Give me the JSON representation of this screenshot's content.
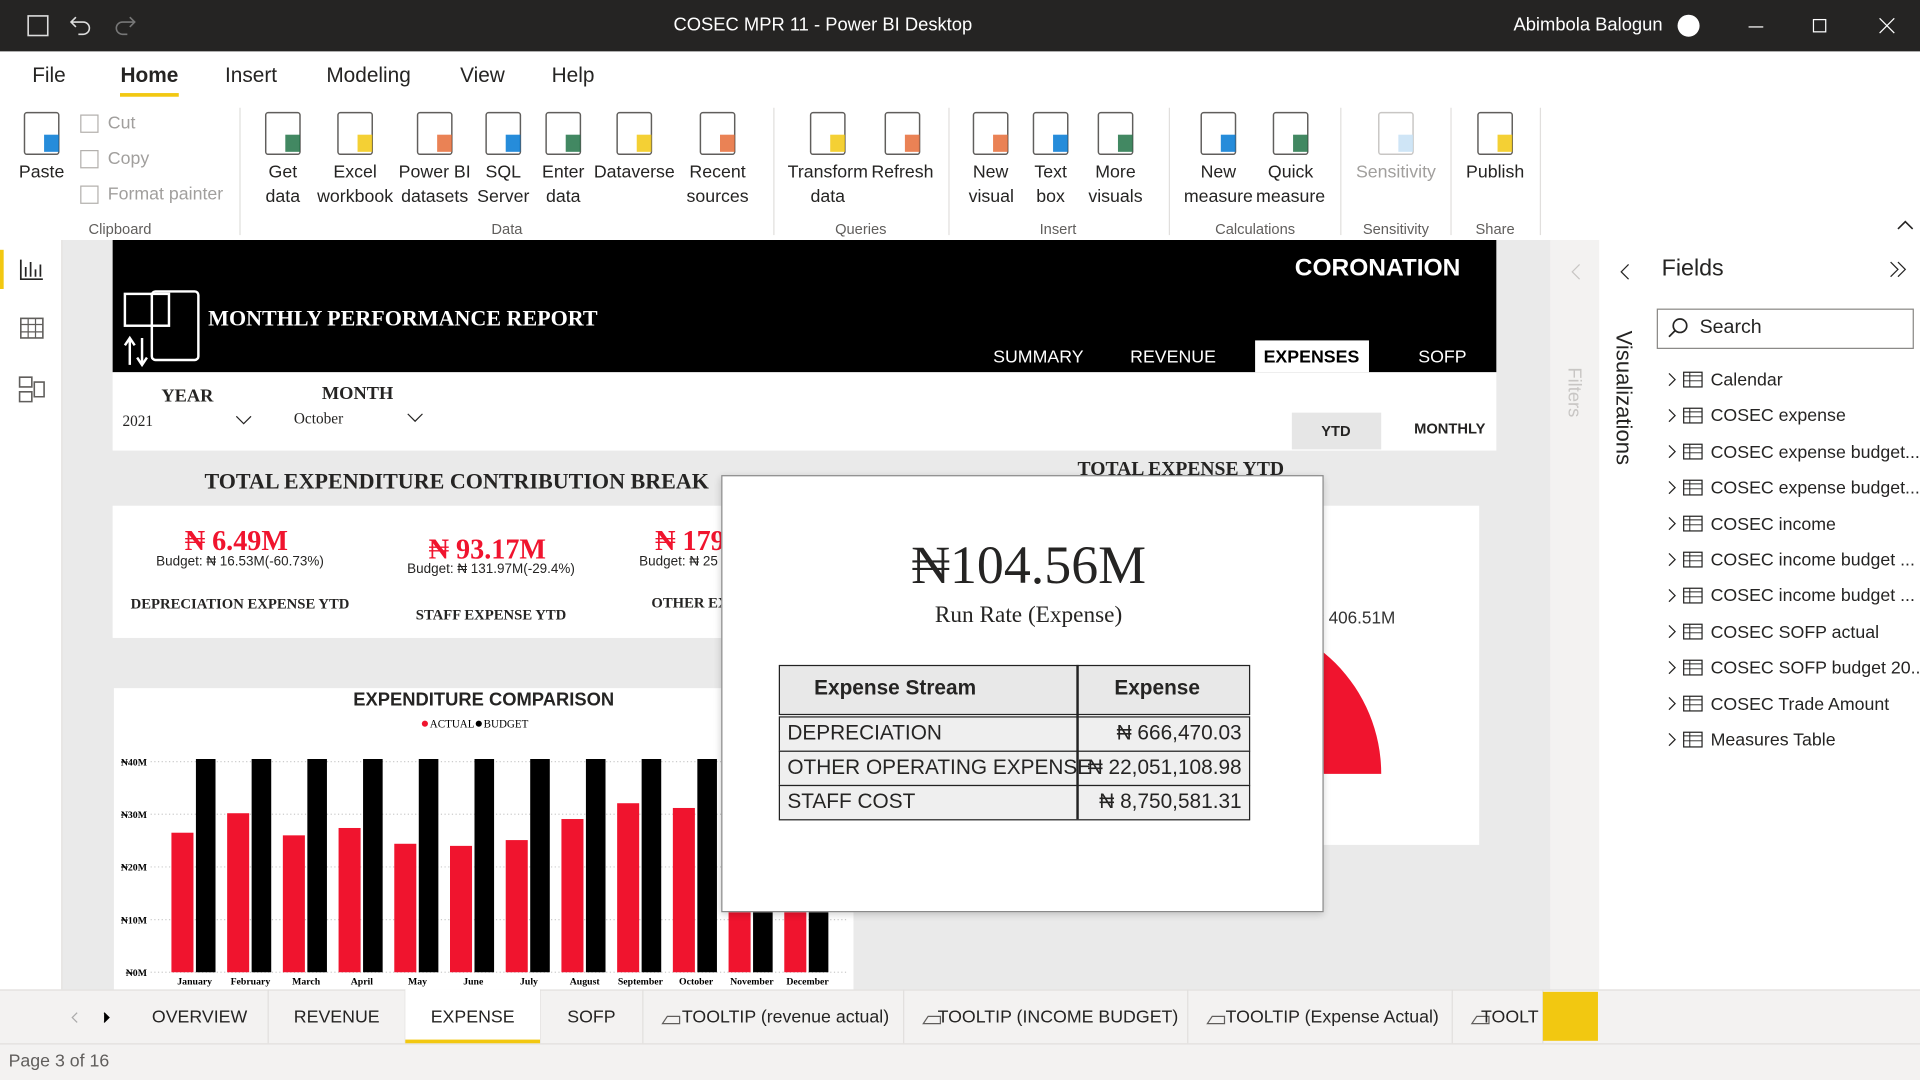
{
  "window": {
    "title": "COSEC MPR 11 - Power BI Desktop",
    "user": "Abimbola Balogun"
  },
  "menu": {
    "items": [
      "File",
      "Home",
      "Insert",
      "Modeling",
      "View",
      "Help"
    ],
    "active": 1
  },
  "ribbon": {
    "groups": [
      {
        "name": "Clipboard",
        "buttons": [
          "Paste",
          "Cut",
          "Copy",
          "Format painter"
        ]
      },
      {
        "name": "Data",
        "buttons": [
          "Get data",
          "Excel workbook",
          "Power BI datasets",
          "SQL Server",
          "Enter data",
          "Dataverse",
          "Recent sources"
        ]
      },
      {
        "name": "Queries",
        "buttons": [
          "Transform data",
          "Refresh"
        ]
      },
      {
        "name": "Insert",
        "buttons": [
          "New visual",
          "Text box",
          "More visuals"
        ]
      },
      {
        "name": "Calculations",
        "buttons": [
          "New measure",
          "Quick measure"
        ]
      },
      {
        "name": "Sensitivity",
        "buttons": [
          "Sensitivity"
        ]
      },
      {
        "name": "Share",
        "buttons": [
          "Publish"
        ]
      }
    ]
  },
  "report": {
    "brand": "CORONATION",
    "title": "MONTHLY PERFORMANCE REPORT",
    "nav": {
      "items": [
        "SUMMARY",
        "REVENUE",
        "EXPENSES",
        "SOFP"
      ],
      "active": 2
    },
    "slicers": [
      {
        "label": "YEAR",
        "value": "2021"
      },
      {
        "label": "MONTH",
        "value": "October"
      }
    ],
    "toggle": [
      "YTD",
      "MONTHLY"
    ],
    "breakdown_title": "TOTAL EXPENDITURE CONTRIBUTION BREAK",
    "kpis": [
      {
        "value": "₦ 6.49M",
        "budget": "Budget: ₦ 16.53M(-60.73%)",
        "name": "DEPRECIATION EXPENSE YTD"
      },
      {
        "value": "₦ 93.17M",
        "budget": "Budget: ₦ 131.97M(-29.4%)",
        "name": "STAFF EXPENSE YTD"
      },
      {
        "value": "₦ 179",
        "budget": "Budget: ₦ 25",
        "name": "OTHER EX"
      }
    ],
    "gauge": {
      "title": "TOTAL EXPENSE YTD",
      "label": "₦ 406.51M"
    }
  },
  "chart_data": {
    "type": "bar",
    "title": "EXPENDITURE COMPARISON",
    "categories": [
      "January",
      "February",
      "March",
      "April",
      "May",
      "June",
      "July",
      "August",
      "September",
      "October",
      "November",
      "December"
    ],
    "series": [
      {
        "name": "ACTUAL",
        "color": "#f0142e",
        "values": [
          26.5,
          30.2,
          26,
          27.4,
          24.4,
          24,
          25.1,
          29.1,
          32.1,
          31.2,
          25,
          25
        ]
      },
      {
        "name": "BUDGET",
        "color": "#000000",
        "values": [
          40.5,
          40.5,
          40.5,
          40.5,
          40.5,
          40.5,
          40.5,
          40.5,
          40.5,
          40.5,
          40.5,
          40.5
        ]
      }
    ],
    "ylim": [
      0,
      40
    ],
    "yticks": [
      {
        "value": 0,
        "label": "₦0M"
      },
      {
        "value": 10,
        "label": "₦10M"
      },
      {
        "value": 20,
        "label": "₦20M"
      },
      {
        "value": 30,
        "label": "₦30M"
      },
      {
        "value": 40,
        "label": "₦40M"
      }
    ],
    "grid": true
  },
  "tooltip": {
    "value": "₦104.56M",
    "label": "Run Rate (Expense)",
    "table": {
      "header": [
        "Expense Stream",
        "Expense"
      ],
      "rows": [
        [
          "DEPRECIATION",
          "₦ 666,470.03"
        ],
        [
          "OTHER OPERATING EXPENSE",
          "₦ 22,051,108.98"
        ],
        [
          "STAFF COST",
          "₦ 8,750,581.31"
        ]
      ]
    }
  },
  "pages": {
    "tabs": [
      "OVERVIEW",
      "REVENUE",
      "EXPENSE",
      "SOFP",
      "TOOLTIP (revenue actual)",
      "TOOLTIP (INCOME BUDGET)",
      "TOOLTIP (Expense Actual)",
      "TOOLT"
    ],
    "active": 2,
    "status": "Page 3 of 16"
  },
  "panes": {
    "filters": "Filters",
    "visualizations": "Visualizations",
    "fields": {
      "title": "Fields",
      "search": "Search",
      "items": [
        "Calendar",
        "COSEC expense",
        "COSEC expense budget...",
        "COSEC expense budget...",
        "COSEC income",
        "COSEC income budget ...",
        "COSEC income budget ...",
        "COSEC SOFP actual",
        "COSEC SOFP budget 20...",
        "COSEC Trade Amount",
        "Measures Table"
      ]
    }
  }
}
